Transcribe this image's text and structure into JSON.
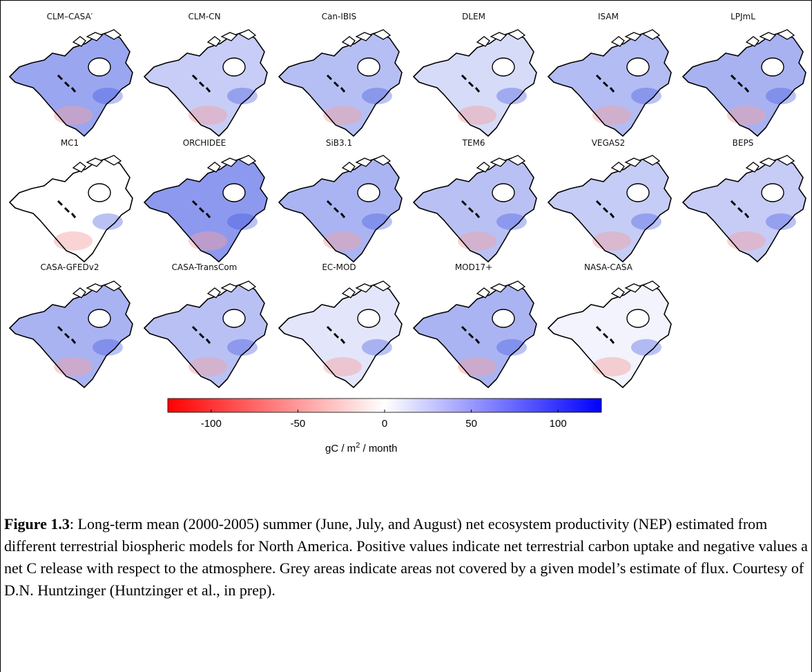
{
  "panels": [
    "CLM–CASA′",
    "CLM-CN",
    "Can-IBIS",
    "DLEM",
    "ISAM",
    "LPJmL",
    "MC1",
    "ORCHIDEE",
    "SiB3.1",
    "TEM6",
    "VEGAS2",
    "BEPS",
    "CASA-GFEDv2",
    "CASA-TransCom",
    "EC-MOD",
    "MOD17+",
    "NASA-CASA"
  ],
  "colorbar": {
    "lim": [
      -125,
      125
    ],
    "ticks": [
      -100,
      -50,
      0,
      50,
      100
    ],
    "units": {
      "text": "gC / m",
      "superscript": "2",
      "suffix": " / month"
    }
  },
  "caption": {
    "label": "Figure 1.3",
    "text": ": Long-term mean (2000-2005) summer (June, July, and August) net ecosystem productivity (NEP) estimated from different terrestrial biospheric models for North America. Positive values indicate net terrestrial carbon uptake and negative values a net C release with respect to the atmosphere. Grey areas indicate areas not covered by a given model’s estimate of flux.  Courtesy of D.N. Huntzinger (Huntzinger et al., in prep)."
  }
}
